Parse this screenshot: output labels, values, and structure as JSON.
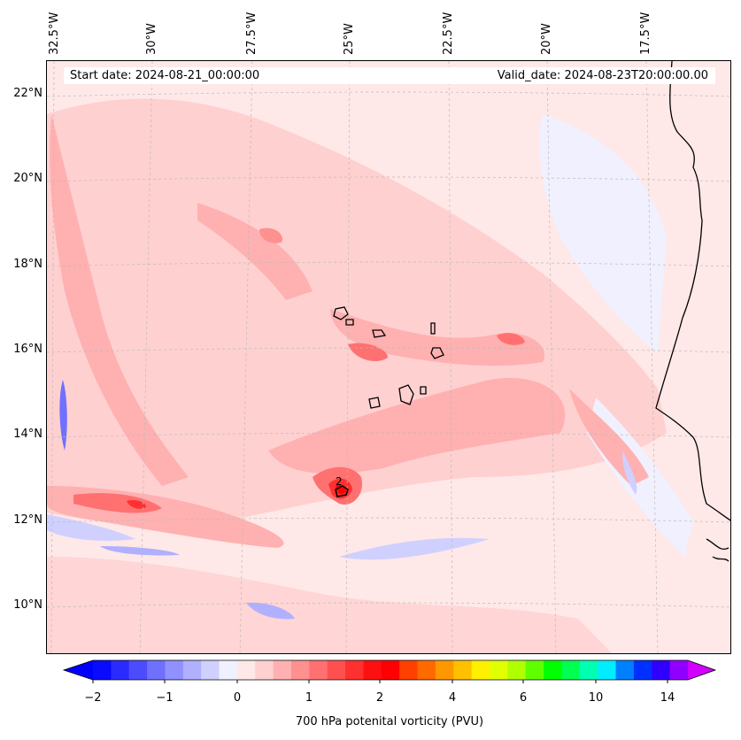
{
  "map": {
    "lon_ticks": [
      "32.5°W",
      "30°W",
      "27.5°W",
      "25°W",
      "22.5°W",
      "20°W",
      "17.5°W"
    ],
    "lat_ticks": [
      "22°N",
      "20°N",
      "18°N",
      "16°N",
      "14°N",
      "12°N",
      "10°N"
    ],
    "start_date": "Start date: 2024-08-21_00:00:00",
    "valid_date": "Valid_date: 2024-08-23T20:00:00.00",
    "contour_label": "2"
  },
  "colorbar": {
    "label": "700 hPa potenital vorticity (PVU)",
    "ticks": [
      "−2",
      "−1",
      "0",
      "1",
      "2",
      "4",
      "6",
      "10",
      "14"
    ],
    "levels": [
      -2,
      -1.75,
      -1.5,
      -1.25,
      -1,
      -0.75,
      -0.5,
      -0.25,
      0,
      0.25,
      0.5,
      0.75,
      1,
      1.25,
      1.5,
      1.75,
      2,
      2.5,
      3,
      3.5,
      4,
      4.5,
      5,
      5.5,
      6,
      7,
      8,
      9,
      10,
      11,
      12,
      13,
      14,
      15
    ],
    "colors": [
      "#0a0aff",
      "#2b2bff",
      "#4c4cff",
      "#7070ff",
      "#9090ff",
      "#b0b0ff",
      "#d0d0ff",
      "#f0f0ff",
      "#ffe8e8",
      "#ffd0d0",
      "#ffb0b0",
      "#ff9090",
      "#ff7070",
      "#ff5050",
      "#ff3030",
      "#ff1010",
      "#ff0000",
      "#ff4000",
      "#ff6a00",
      "#ff9800",
      "#ffc000",
      "#fff000",
      "#e0ff00",
      "#b0ff00",
      "#60ff00",
      "#00ff00",
      "#00ff50",
      "#00ffb0",
      "#00ecff",
      "#0080ff",
      "#0030ff",
      "#3000ff",
      "#9000ff"
    ],
    "under_color": "#0000ff",
    "over_color": "#d000ff"
  }
}
